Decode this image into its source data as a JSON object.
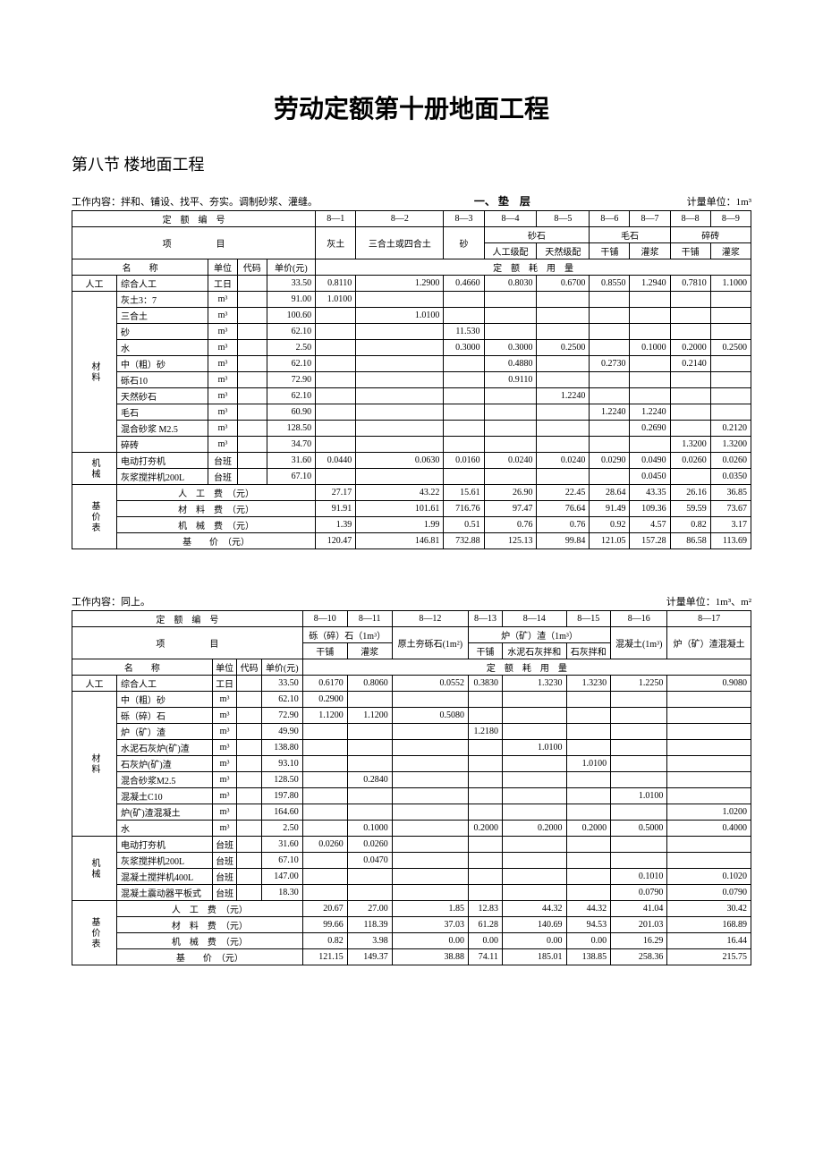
{
  "doc_title": "劳动定额第十册地面工程",
  "section_title": "第八节 楼地面工程",
  "table1": {
    "work_content": "工作内容：拌和、铺设、找平、夯实。调制砂浆、灌缝。",
    "section_name": "一、 垫　层",
    "unit_label": "计量单位：1m³",
    "header_code": "定　额　编　号",
    "header_item": "项　　　　　目",
    "header_name": "名　　称",
    "header_unit": "单位",
    "header_dm": "代码",
    "header_price": "单价(元)",
    "header_usage": "定　额　耗　用　量",
    "codes": [
      "8—1",
      "8—2",
      "8—3",
      "8—4",
      "8—5",
      "8—6",
      "8—7",
      "8—8",
      "8—9"
    ],
    "col_h1": [
      "灰土",
      "三合土或四合土",
      "砂",
      "砂石",
      "",
      "毛石",
      "",
      "碎砖",
      ""
    ],
    "col_h2": [
      "",
      "",
      "",
      "人工级配",
      "天然级配",
      "干铺",
      "灌浆",
      "干铺",
      "灌浆"
    ],
    "group_labor": "人工",
    "group_mat": "材料",
    "group_mach": "机械",
    "group_price": "基价表",
    "labor_row": {
      "name": "综合人工",
      "unit": "工日",
      "price": "33.50",
      "vals": [
        "0.8110",
        "1.2900",
        "0.4660",
        "0.8030",
        "0.6700",
        "0.8550",
        "1.2940",
        "0.7810",
        "1.1000"
      ]
    },
    "mat_rows": [
      {
        "name": "灰土3：7",
        "unit": "m³",
        "price": "91.00",
        "vals": [
          "1.0100",
          "",
          "",
          "",
          "",
          "",
          "",
          "",
          ""
        ]
      },
      {
        "name": "三合土",
        "unit": "m³",
        "price": "100.60",
        "vals": [
          "",
          "1.0100",
          "",
          "",
          "",
          "",
          "",
          "",
          ""
        ]
      },
      {
        "name": "砂",
        "unit": "m³",
        "price": "62.10",
        "vals": [
          "",
          "",
          "11.530",
          "",
          "",
          "",
          "",
          "",
          ""
        ]
      },
      {
        "name": "水",
        "unit": "m³",
        "price": "2.50",
        "vals": [
          "",
          "",
          "0.3000",
          "0.3000",
          "0.2500",
          "",
          "0.1000",
          "0.2000",
          "0.2500"
        ]
      },
      {
        "name": "中（粗）砂",
        "unit": "m³",
        "price": "62.10",
        "vals": [
          "",
          "",
          "",
          "0.4880",
          "",
          "0.2730",
          "",
          "0.2140",
          ""
        ]
      },
      {
        "name": "砾石10",
        "unit": "m³",
        "price": "72.90",
        "vals": [
          "",
          "",
          "",
          "0.9110",
          "",
          "",
          "",
          "",
          ""
        ]
      },
      {
        "name": "天然砂石",
        "unit": "m³",
        "price": "62.10",
        "vals": [
          "",
          "",
          "",
          "",
          "1.2240",
          "",
          "",
          "",
          ""
        ]
      },
      {
        "name": "毛石",
        "unit": "m³",
        "price": "60.90",
        "vals": [
          "",
          "",
          "",
          "",
          "",
          "1.2240",
          "1.2240",
          "",
          ""
        ]
      },
      {
        "name": "混合砂浆 M2.5",
        "unit": "m³",
        "price": "128.50",
        "vals": [
          "",
          "",
          "",
          "",
          "",
          "",
          "0.2690",
          "",
          "0.2120"
        ]
      },
      {
        "name": "碎砖",
        "unit": "m³",
        "price": "34.70",
        "vals": [
          "",
          "",
          "",
          "",
          "",
          "",
          "",
          "1.3200",
          "1.3200"
        ]
      }
    ],
    "mach_rows": [
      {
        "name": "电动打夯机",
        "unit": "台班",
        "price": "31.60",
        "vals": [
          "0.0440",
          "0.0630",
          "0.0160",
          "0.0240",
          "0.0240",
          "0.0290",
          "0.0490",
          "0.0260",
          "0.0260"
        ]
      },
      {
        "name": "灰浆搅拌机200L",
        "unit": "台班",
        "price": "67.10",
        "vals": [
          "",
          "",
          "",
          "",
          "",
          "",
          "0.0450",
          "",
          "0.0350"
        ]
      }
    ],
    "price_rows": [
      {
        "name": "人　工　费　（元）",
        "vals": [
          "27.17",
          "43.22",
          "15.61",
          "26.90",
          "22.45",
          "28.64",
          "43.35",
          "26.16",
          "36.85"
        ]
      },
      {
        "name": "材　料　费　（元）",
        "vals": [
          "91.91",
          "101.61",
          "716.76",
          "97.47",
          "76.64",
          "91.49",
          "109.36",
          "59.59",
          "73.67"
        ]
      },
      {
        "name": "机　械　费　（元）",
        "vals": [
          "1.39",
          "1.99",
          "0.51",
          "0.76",
          "0.76",
          "0.92",
          "4.57",
          "0.82",
          "3.17"
        ]
      },
      {
        "name": "基　　价　（元）",
        "vals": [
          "120.47",
          "146.81",
          "732.88",
          "125.13",
          "99.84",
          "121.05",
          "157.28",
          "86.58",
          "113.69"
        ]
      }
    ]
  },
  "table2": {
    "work_content": "工作内容：同上。",
    "unit_label": "计量单位：1m³、m²",
    "codes": [
      "8—10",
      "8—11",
      "8—12",
      "8—13",
      "8—14",
      "8—15",
      "8—16",
      "8—17"
    ],
    "col_h1a": "砾（碎）石（1m³）",
    "col_h1b": "原土夯砾石(1m²)",
    "col_h1c": "炉（矿）渣（1m³）",
    "col_h1d": "混凝土(1m³)",
    "col_h1e": "炉（矿）渣混凝土",
    "col_h2": [
      "干铺",
      "灌浆",
      "",
      "干铺",
      "水泥石灰拌和",
      "石灰拌和",
      "",
      ""
    ],
    "labor_row": {
      "name": "综合人工",
      "unit": "工日",
      "price": "33.50",
      "vals": [
        "0.6170",
        "0.8060",
        "0.0552",
        "0.3830",
        "1.3230",
        "1.3230",
        "1.2250",
        "0.9080"
      ]
    },
    "mat_rows": [
      {
        "name": "中（粗）砂",
        "unit": "m³",
        "price": "62.10",
        "vals": [
          "0.2900",
          "",
          "",
          "",
          "",
          "",
          "",
          ""
        ]
      },
      {
        "name": "砾（碎）石",
        "unit": "m³",
        "price": "72.90",
        "vals": [
          "1.1200",
          "1.1200",
          "0.5080",
          "",
          "",
          "",
          "",
          ""
        ]
      },
      {
        "name": "炉（矿）渣",
        "unit": "m³",
        "price": "49.90",
        "vals": [
          "",
          "",
          "",
          "1.2180",
          "",
          "",
          "",
          ""
        ]
      },
      {
        "name": "水泥石灰炉(矿)渣",
        "unit": "m³",
        "price": "138.80",
        "vals": [
          "",
          "",
          "",
          "",
          "1.0100",
          "",
          "",
          ""
        ]
      },
      {
        "name": "石灰炉(矿)渣",
        "unit": "m³",
        "price": "93.10",
        "vals": [
          "",
          "",
          "",
          "",
          "",
          "1.0100",
          "",
          ""
        ]
      },
      {
        "name": "混合砂浆M2.5",
        "unit": "m³",
        "price": "128.50",
        "vals": [
          "",
          "0.2840",
          "",
          "",
          "",
          "",
          "",
          ""
        ]
      },
      {
        "name": "混凝土C10",
        "unit": "m³",
        "price": "197.80",
        "vals": [
          "",
          "",
          "",
          "",
          "",
          "",
          "1.0100",
          ""
        ]
      },
      {
        "name": "炉(矿)渣混凝土",
        "unit": "m³",
        "price": "164.60",
        "vals": [
          "",
          "",
          "",
          "",
          "",
          "",
          "",
          "1.0200"
        ]
      },
      {
        "name": "水",
        "unit": "m³",
        "price": "2.50",
        "vals": [
          "",
          "0.1000",
          "",
          "0.2000",
          "0.2000",
          "0.2000",
          "0.5000",
          "0.4000"
        ]
      }
    ],
    "mach_rows": [
      {
        "name": "电动打夯机",
        "unit": "台班",
        "price": "31.60",
        "vals": [
          "0.0260",
          "0.0260",
          "",
          "",
          "",
          "",
          "",
          ""
        ]
      },
      {
        "name": "灰浆搅拌机200L",
        "unit": "台班",
        "price": "67.10",
        "vals": [
          "",
          "0.0470",
          "",
          "",
          "",
          "",
          "",
          ""
        ]
      },
      {
        "name": "混凝土搅拌机400L",
        "unit": "台班",
        "price": "147.00",
        "vals": [
          "",
          "",
          "",
          "",
          "",
          "",
          "0.1010",
          "0.1020"
        ]
      },
      {
        "name": "混凝土震动器平板式",
        "unit": "台班",
        "price": "18.30",
        "vals": [
          "",
          "",
          "",
          "",
          "",
          "",
          "0.0790",
          "0.0790"
        ]
      }
    ],
    "price_rows": [
      {
        "name": "人　工　费　（元）",
        "vals": [
          "20.67",
          "27.00",
          "1.85",
          "12.83",
          "44.32",
          "44.32",
          "41.04",
          "30.42"
        ]
      },
      {
        "name": "材　料　费　（元）",
        "vals": [
          "99.66",
          "118.39",
          "37.03",
          "61.28",
          "140.69",
          "94.53",
          "201.03",
          "168.89"
        ]
      },
      {
        "name": "机　械　费　（元）",
        "vals": [
          "0.82",
          "3.98",
          "0.00",
          "0.00",
          "0.00",
          "0.00",
          "16.29",
          "16.44"
        ]
      },
      {
        "name": "基　　价　（元）",
        "vals": [
          "121.15",
          "149.37",
          "38.88",
          "74.11",
          "185.01",
          "138.85",
          "258.36",
          "215.75"
        ]
      }
    ]
  }
}
